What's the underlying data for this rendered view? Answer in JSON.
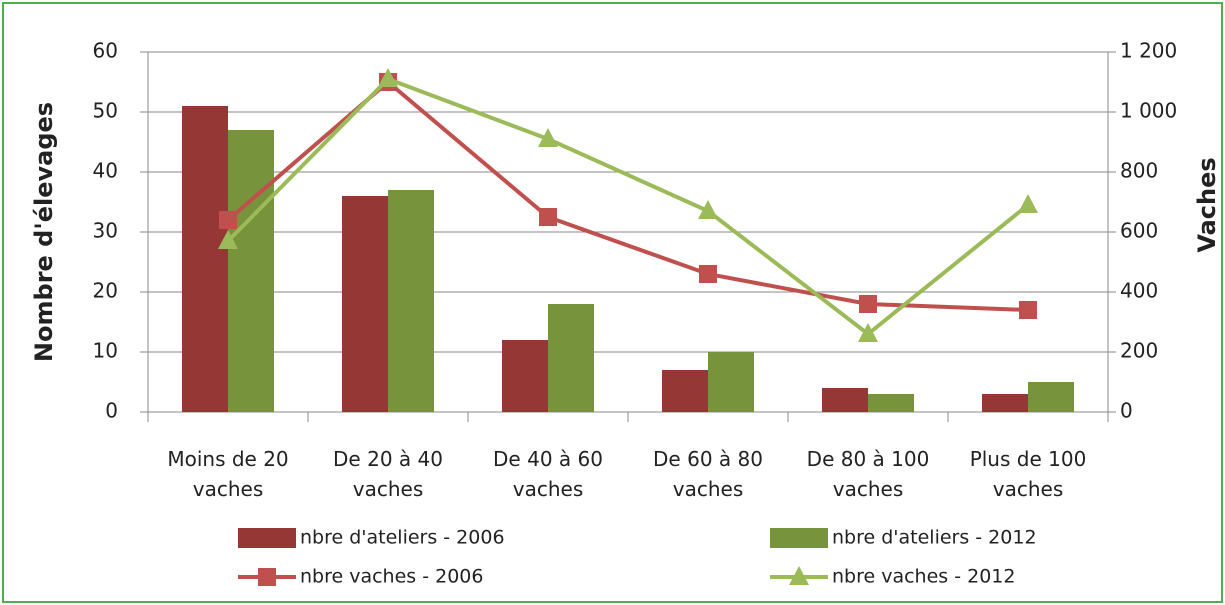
{
  "chart_data": {
    "type": "bar",
    "categories": [
      "Moins de 20 vaches",
      "De 20 à 40 vaches",
      "De 40 à 60 vaches",
      "De 60 à 80 vaches",
      "De 80 à 100 vaches",
      "Plus de 100 vaches"
    ],
    "series": [
      {
        "name": "nbre d'ateliers - 2006",
        "type": "bar",
        "color": "#953735",
        "values": [
          51,
          36,
          12,
          7,
          4,
          3
        ]
      },
      {
        "name": "nbre d'ateliers - 2012",
        "type": "bar",
        "color": "#77933c",
        "values": [
          47,
          37,
          18,
          10,
          3,
          5
        ]
      },
      {
        "name": "nbre vaches - 2006",
        "type": "line",
        "axis": "y2",
        "marker": "square",
        "color": "#c0504d",
        "values": [
          640,
          1100,
          650,
          460,
          360,
          340
        ]
      },
      {
        "name": "nbre vaches - 2012",
        "type": "line",
        "axis": "y2",
        "marker": "triangle",
        "color": "#9bbb59",
        "values": [
          570,
          1110,
          910,
          670,
          260,
          690
        ]
      }
    ],
    "ylabel": "Nombre d'élevages",
    "y2label": "Vaches",
    "ylim": [
      0,
      60
    ],
    "yticks": [
      0,
      10,
      20,
      30,
      40,
      50,
      60
    ],
    "y2lim": [
      0,
      1200
    ],
    "y2ticks": [
      0,
      200,
      400,
      600,
      800,
      {
        "value": 1000,
        "label": "1 000"
      },
      {
        "value": 1200,
        "label": "1 200"
      }
    ],
    "grid": true,
    "legend": "bottom"
  }
}
